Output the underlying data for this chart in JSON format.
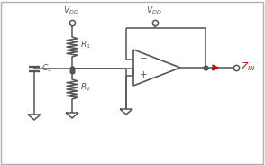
{
  "bg_color": "#ffffff",
  "border_color": "#b0b0b0",
  "line_color": "#555555",
  "red_color": "#cc0000",
  "figsize": [
    2.94,
    1.83
  ],
  "dpi": 100
}
